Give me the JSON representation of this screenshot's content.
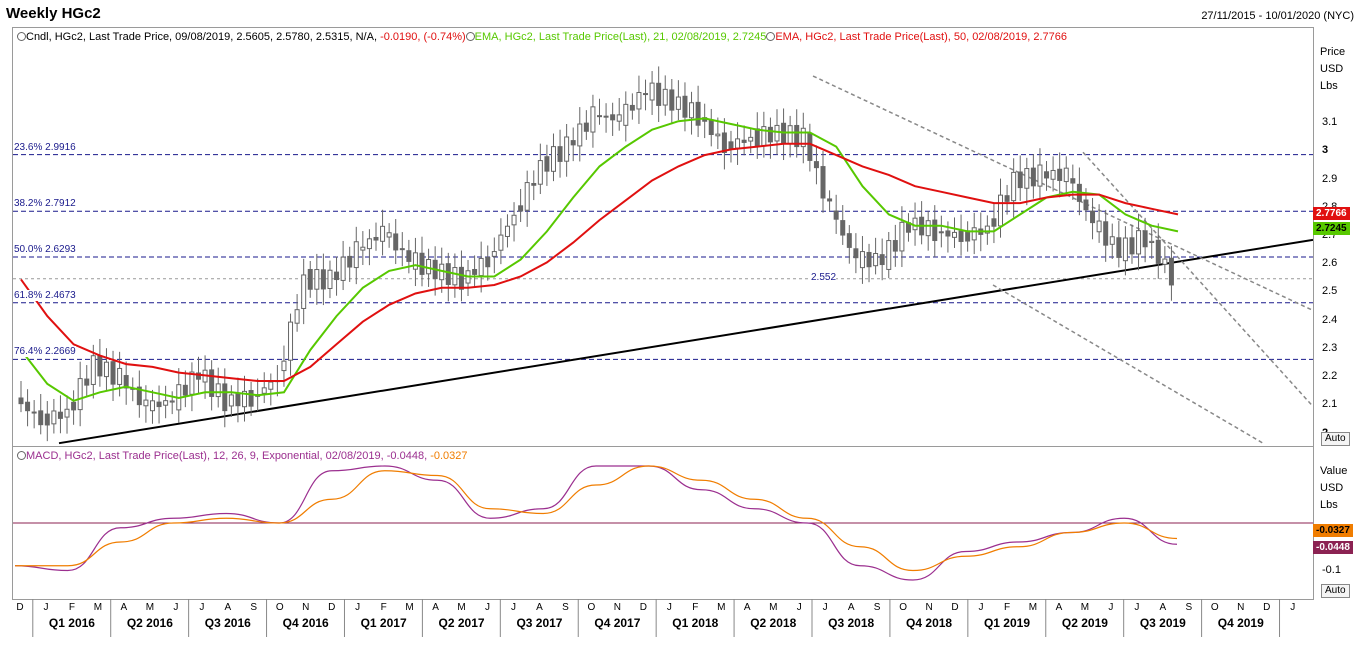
{
  "header": {
    "title": "Weekly HGc2",
    "date_range": "27/11/2015 - 10/01/2020 (NYC)"
  },
  "main_legend": {
    "candle": {
      "text": "Cndl, HGc2, Last Trade Price, 09/08/2019, 2.5605, 2.5780, 2.5315, N/A, ",
      "change": "-0.0190, (-0.74%)"
    },
    "ema21": {
      "text": "EMA, HGc2, Last Trade Price(Last), 21, 02/08/2019, 2.7245",
      "color": "#57c800"
    },
    "ema50": {
      "text": "EMA, HGc2, Last Trade Price(Last), 50, 02/08/2019, 2.7766",
      "color": "#e01010"
    }
  },
  "main_axis": {
    "title_lines": [
      "Price",
      "USD",
      "Lbs"
    ],
    "ticks": [
      "3.1",
      "3",
      "2.9",
      "2.8",
      "2.7",
      "2.6",
      "2.5",
      "2.4",
      "2.3",
      "2.2",
      "2.1",
      "2"
    ],
    "bold_ticks": [
      "3",
      "2"
    ],
    "ema50_tag": "2.7766",
    "ema21_tag": "2.7245",
    "auto_label": "Auto"
  },
  "fib_levels": [
    {
      "label": "23.6% 2.9916",
      "value": 2.9916
    },
    {
      "label": "38.2% 2.7912",
      "value": 2.7912
    },
    {
      "label": "50.0% 2.6293",
      "value": 2.6293
    },
    {
      "label": "61.8% 2.4673",
      "value": 2.4673
    },
    {
      "label": "76.4% 2.2669",
      "value": 2.2669
    }
  ],
  "annotation": {
    "text": "2.552",
    "value": 2.552
  },
  "macd_legend": {
    "text": "MACD, HGc2, Last Trade Price(Last), 12, 26, 9, Exponential, 02/08/2019, ",
    "macd_value": "-0.0448",
    "signal_value": "-0.0327"
  },
  "macd_axis": {
    "title_lines": [
      "Value",
      "USD",
      "Lbs"
    ],
    "ticks": [
      "-0.1"
    ],
    "signal_tag": "-0.0327",
    "macd_tag": "-0.0448",
    "auto_label": "Auto"
  },
  "time_axis": {
    "months": [
      "D",
      "J",
      "F",
      "M",
      "A",
      "M",
      "J",
      "J",
      "A",
      "S",
      "O",
      "N",
      "D",
      "J",
      "F",
      "M",
      "A",
      "M",
      "J",
      "J",
      "A",
      "S",
      "O",
      "N",
      "D",
      "J",
      "F",
      "M",
      "A",
      "M",
      "J",
      "J",
      "A",
      "S",
      "O",
      "N",
      "D",
      "J",
      "F",
      "M",
      "A",
      "M",
      "J",
      "J",
      "A",
      "S",
      "O",
      "N",
      "D",
      "J"
    ],
    "quarters": [
      "Q1 2016",
      "Q2 2016",
      "Q3 2016",
      "Q4 2016",
      "Q1 2017",
      "Q2 2017",
      "Q3 2017",
      "Q4 2017",
      "Q1 2018",
      "Q2 2018",
      "Q3 2018",
      "Q4 2018",
      "Q1 2019",
      "Q2 2019",
      "Q3 2019",
      "Q4 2019"
    ]
  },
  "chart_data": {
    "type": "line",
    "series_type": "candlestick",
    "instrument": "HGc2",
    "frequency": "Weekly",
    "ylim": [
      1.96,
      3.44
    ],
    "x": [
      "2015-12",
      "2016-01",
      "2016-02",
      "2016-03",
      "2016-04",
      "2016-05",
      "2016-06",
      "2016-07",
      "2016-08",
      "2016-09",
      "2016-10",
      "2016-11",
      "2016-12",
      "2017-01",
      "2017-02",
      "2017-03",
      "2017-04",
      "2017-05",
      "2017-06",
      "2017-07",
      "2017-08",
      "2017-09",
      "2017-10",
      "2017-11",
      "2017-12",
      "2018-01",
      "2018-02",
      "2018-03",
      "2018-04",
      "2018-05",
      "2018-06",
      "2018-07",
      "2018-08",
      "2018-09",
      "2018-10",
      "2018-11",
      "2018-12",
      "2019-01",
      "2019-02",
      "2019-03",
      "2019-04",
      "2019-05",
      "2019-06",
      "2019-07",
      "2019-08"
    ],
    "series": [
      {
        "name": "HGc2 close",
        "color": "#666666",
        "values": [
          2.13,
          2.05,
          2.08,
          2.25,
          2.2,
          2.1,
          2.12,
          2.22,
          2.12,
          2.13,
          2.2,
          2.55,
          2.55,
          2.65,
          2.72,
          2.62,
          2.58,
          2.55,
          2.62,
          2.78,
          2.95,
          3.02,
          3.13,
          3.12,
          3.22,
          3.18,
          3.13,
          3.02,
          3.05,
          3.07,
          3.05,
          2.8,
          2.62,
          2.62,
          2.75,
          2.72,
          2.7,
          2.73,
          2.9,
          2.92,
          2.92,
          2.75,
          2.65,
          2.7,
          2.56
        ]
      },
      {
        "name": "EMA 21",
        "color": "#57c800",
        "values": [
          2.3,
          2.18,
          2.12,
          2.15,
          2.17,
          2.15,
          2.13,
          2.15,
          2.15,
          2.14,
          2.15,
          2.3,
          2.42,
          2.52,
          2.58,
          2.6,
          2.58,
          2.56,
          2.56,
          2.62,
          2.72,
          2.84,
          2.95,
          3.02,
          3.08,
          3.11,
          3.12,
          3.1,
          3.08,
          3.07,
          3.07,
          3.02,
          2.88,
          2.78,
          2.74,
          2.74,
          2.72,
          2.72,
          2.78,
          2.84,
          2.86,
          2.85,
          2.78,
          2.74,
          2.72
        ]
      },
      {
        "name": "EMA 50",
        "color": "#e01010",
        "values": [
          2.55,
          2.42,
          2.32,
          2.28,
          2.25,
          2.24,
          2.22,
          2.21,
          2.2,
          2.19,
          2.19,
          2.24,
          2.32,
          2.4,
          2.46,
          2.5,
          2.52,
          2.52,
          2.53,
          2.56,
          2.61,
          2.68,
          2.76,
          2.83,
          2.9,
          2.95,
          2.99,
          3.01,
          3.02,
          3.03,
          3.03,
          2.99,
          2.95,
          2.92,
          2.88,
          2.86,
          2.84,
          2.82,
          2.82,
          2.84,
          2.85,
          2.85,
          2.82,
          2.8,
          2.78
        ]
      }
    ],
    "macd": {
      "x": [
        "2015-12",
        "2016-02",
        "2016-04",
        "2016-06",
        "2016-08",
        "2016-10",
        "2016-12",
        "2017-02",
        "2017-04",
        "2017-06",
        "2017-08",
        "2017-10",
        "2017-12",
        "2018-02",
        "2018-04",
        "2018-06",
        "2018-08",
        "2018-10",
        "2018-12",
        "2019-02",
        "2019-04",
        "2019-06",
        "2019-08"
      ],
      "series": [
        {
          "name": "MACD",
          "color": "#9b2f8f",
          "values": [
            -0.09,
            -0.1,
            -0.01,
            0.01,
            0.02,
            0.0,
            0.11,
            0.12,
            0.09,
            0.01,
            0.03,
            0.12,
            0.12,
            0.07,
            0.03,
            0.0,
            -0.09,
            -0.12,
            -0.06,
            -0.04,
            -0.02,
            0.01,
            -0.0448
          ]
        },
        {
          "name": "Signal",
          "color": "#f07d00",
          "values": [
            -0.09,
            -0.09,
            -0.04,
            0.0,
            0.01,
            0.0,
            0.05,
            0.11,
            0.1,
            0.03,
            0.02,
            0.08,
            0.12,
            0.09,
            0.05,
            0.01,
            -0.05,
            -0.1,
            -0.07,
            -0.05,
            -0.02,
            0.0,
            -0.0327
          ]
        }
      ],
      "ylim": [
        -0.16,
        0.16
      ]
    }
  },
  "colors": {
    "fib_line": "#1a1a8c",
    "trendline": "#000000",
    "channel": "#888888",
    "candle": "#666666",
    "ema21": "#57c800",
    "ema50": "#e01010",
    "macd": "#9b2f8f",
    "signal": "#f07d00",
    "macd_zero": "#8b2252"
  }
}
